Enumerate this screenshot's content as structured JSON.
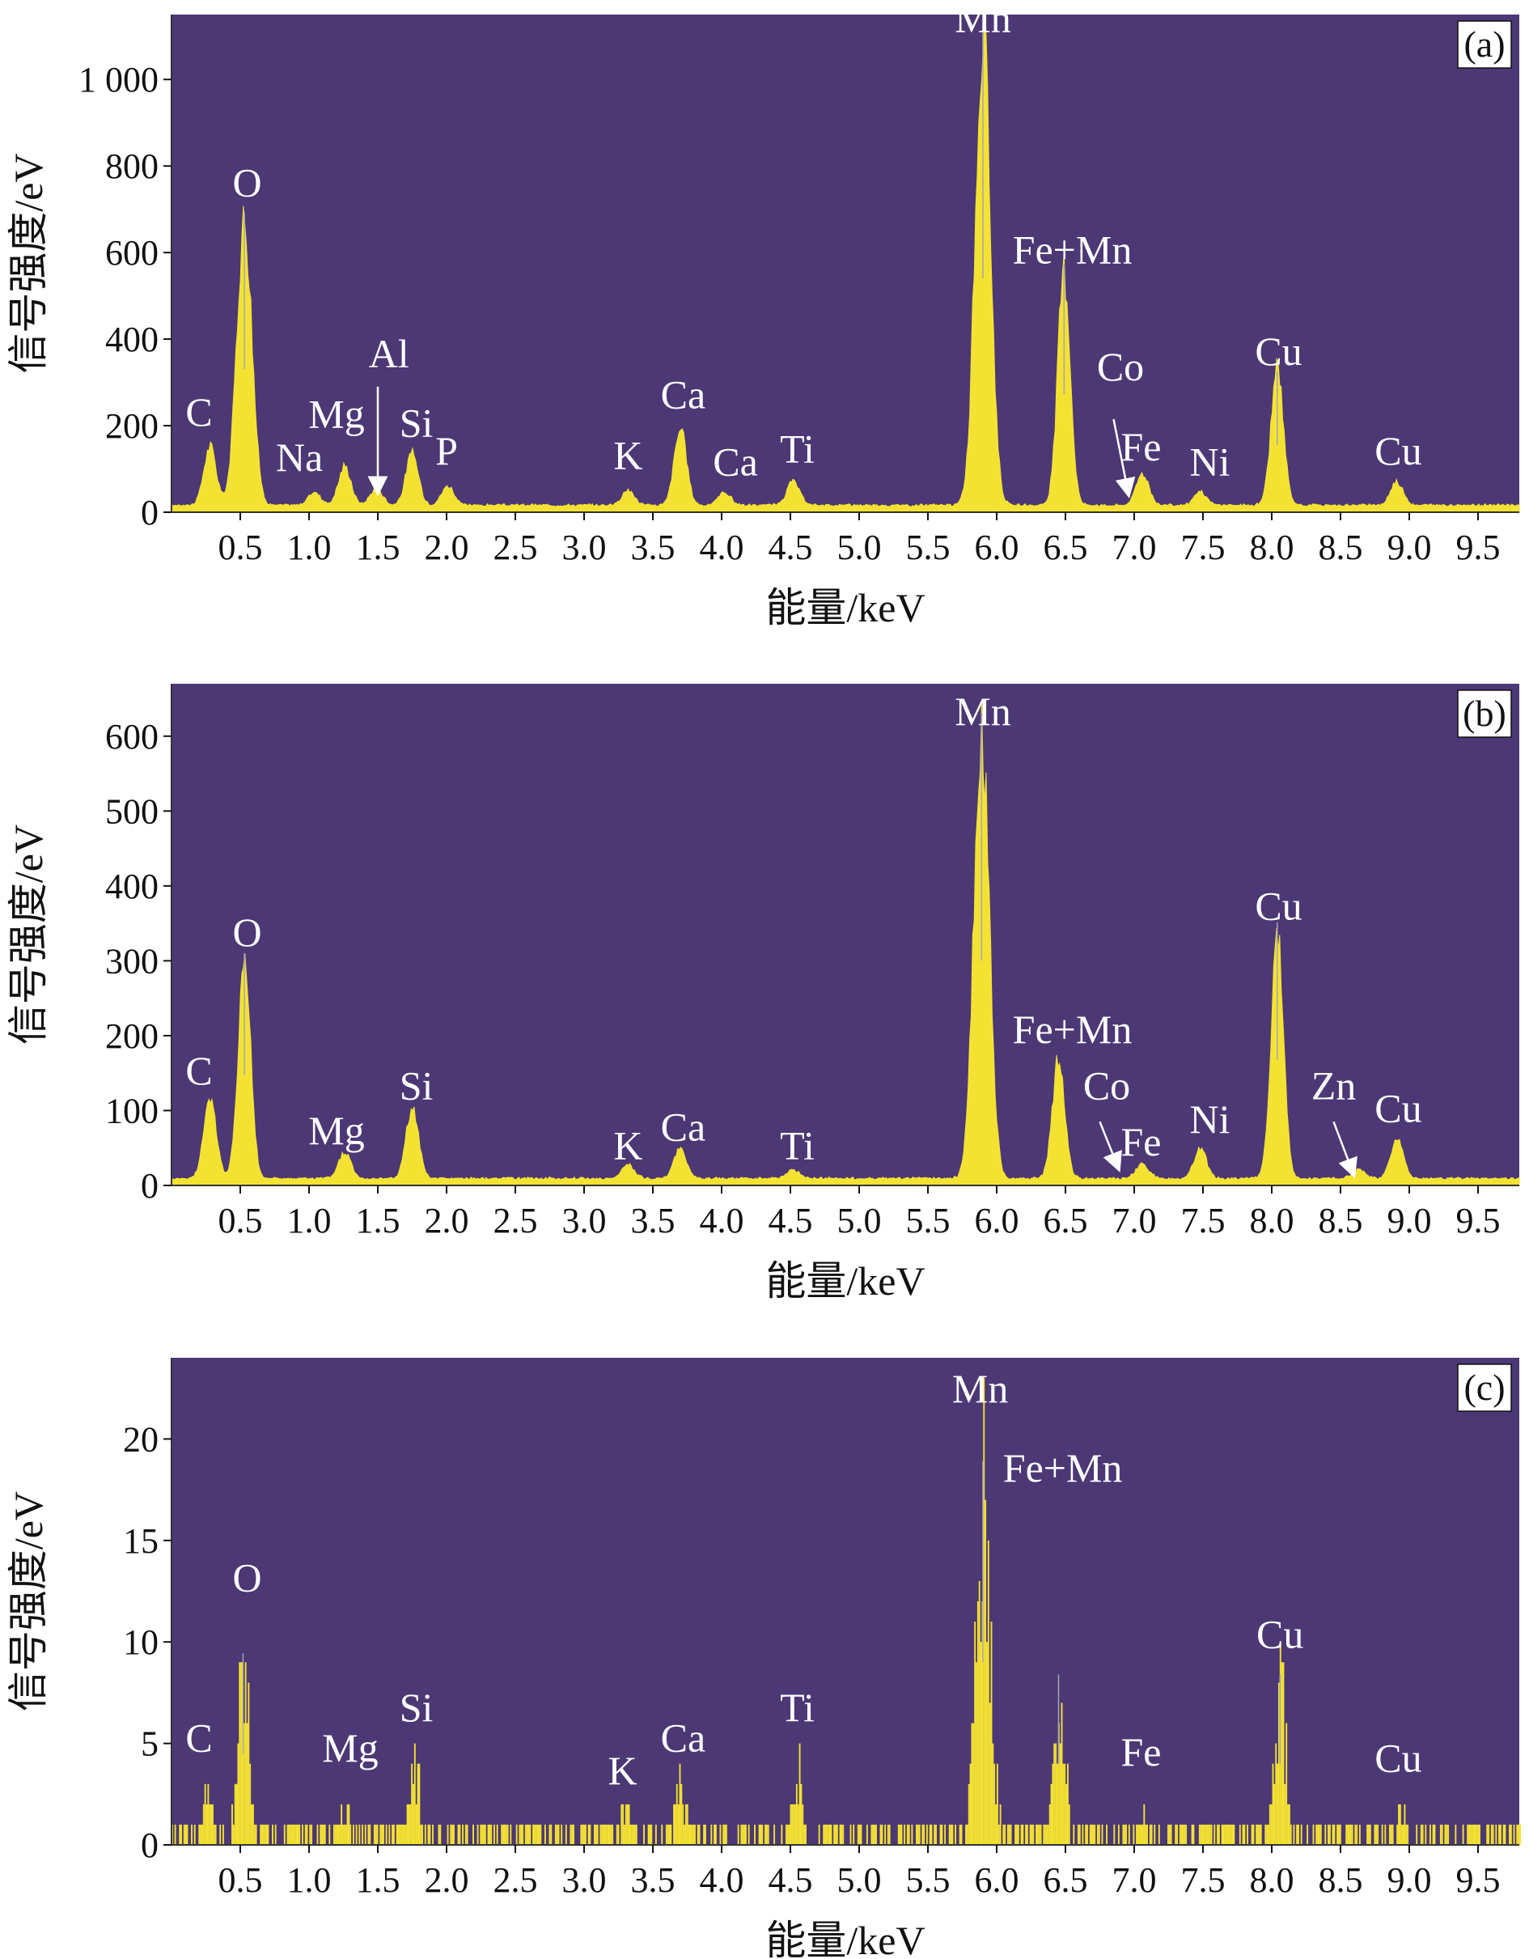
{
  "colors": {
    "plot_bg": "#4b3875",
    "spectrum_fill": "#f4e233",
    "peak_highlight": "#a8a6b8",
    "label_text": "#ffffff",
    "arrow": "#ffffff"
  },
  "chart_data": [
    {
      "panel": "(a)",
      "type": "area",
      "xlabel": "能量/keV",
      "ylabel": "信号强度/eV",
      "xlim": [
        0.0,
        9.8
      ],
      "ylim": [
        0,
        1150
      ],
      "x_ticks": [
        "0.5",
        "1.0",
        "1.5",
        "2.0",
        "2.5",
        "3.0",
        "3.5",
        "4.0",
        "4.5",
        "5.0",
        "5.5",
        "6.0",
        "6.5",
        "7.0",
        "7.5",
        "8.0",
        "8.5",
        "9.0",
        "9.5"
      ],
      "y_ticks": [
        "0",
        "200",
        "400",
        "600",
        "800",
        "1 000"
      ],
      "y_tick_values": [
        0,
        200,
        400,
        600,
        800,
        1000
      ],
      "baseline": 14,
      "spiky": false,
      "peaks": [
        {
          "element": "C",
          "x": 0.28,
          "y": 135
        },
        {
          "element": "O",
          "x": 0.53,
          "y": 660
        },
        {
          "element": "Na",
          "x": 1.04,
          "y": 30
        },
        {
          "element": "Mg",
          "x": 1.26,
          "y": 90
        },
        {
          "element": "Al",
          "x": 1.49,
          "y": 40
        },
        {
          "element": "Si",
          "x": 1.75,
          "y": 120
        },
        {
          "element": "P",
          "x": 2.01,
          "y": 45
        },
        {
          "element": "K",
          "x": 3.32,
          "y": 35
        },
        {
          "element": "Ca",
          "x": 3.7,
          "y": 175
        },
        {
          "element": "Ca",
          "x": 4.02,
          "y": 30
        },
        {
          "element": "Ti",
          "x": 4.52,
          "y": 55
        },
        {
          "element": "Mn",
          "x": 5.9,
          "y": 1080
        },
        {
          "element": "Fe+Mn",
          "x": 6.49,
          "y": 545
        },
        {
          "element": "Fe",
          "x": 7.06,
          "y": 75
        },
        {
          "element": "Ni",
          "x": 7.48,
          "y": 30
        },
        {
          "element": "Cu",
          "x": 8.04,
          "y": 310
        },
        {
          "element": "Cu",
          "x": 8.91,
          "y": 55
        }
      ],
      "labels": [
        {
          "text": "C",
          "x": 0.2,
          "y": 200
        },
        {
          "text": "O",
          "x": 0.55,
          "y": 730
        },
        {
          "text": "Na",
          "x": 0.93,
          "y": 95
        },
        {
          "text": "Mg",
          "x": 1.2,
          "y": 195
        },
        {
          "text": "Al",
          "x": 1.58,
          "y": 335
        },
        {
          "text": "Si",
          "x": 1.78,
          "y": 175
        },
        {
          "text": "P",
          "x": 2.0,
          "y": 110
        },
        {
          "text": "K",
          "x": 3.32,
          "y": 100
        },
        {
          "text": "Ca",
          "x": 3.72,
          "y": 240
        },
        {
          "text": "Ca",
          "x": 4.1,
          "y": 85
        },
        {
          "text": "Ti",
          "x": 4.55,
          "y": 115
        },
        {
          "text": "Mn",
          "x": 5.9,
          "y": 1110
        },
        {
          "text": "Fe+Mn",
          "x": 6.55,
          "y": 575
        },
        {
          "text": "Co",
          "x": 6.9,
          "y": 305
        },
        {
          "text": "Fe",
          "x": 7.05,
          "y": 120
        },
        {
          "text": "Ni",
          "x": 7.55,
          "y": 85
        },
        {
          "text": "Cu",
          "x": 8.05,
          "y": 340
        },
        {
          "text": "Cu",
          "x": 8.92,
          "y": 110
        }
      ],
      "arrows": [
        {
          "from": [
            1.5,
            290
          ],
          "to": [
            1.5,
            60
          ]
        },
        {
          "from": [
            6.85,
            215
          ],
          "to": [
            6.95,
            55
          ]
        }
      ]
    },
    {
      "panel": "(b)",
      "type": "area",
      "xlabel": "能量/keV",
      "ylabel": "信号强度/eV",
      "xlim": [
        0.0,
        9.8
      ],
      "ylim": [
        0,
        670
      ],
      "x_ticks": [
        "0.5",
        "1.0",
        "1.5",
        "2.0",
        "2.5",
        "3.0",
        "3.5",
        "4.0",
        "4.5",
        "5.0",
        "5.5",
        "6.0",
        "6.5",
        "7.0",
        "7.5",
        "8.0",
        "8.5",
        "9.0",
        "9.5"
      ],
      "y_ticks": [
        "0",
        "100",
        "200",
        "300",
        "400",
        "500",
        "600"
      ],
      "y_tick_values": [
        0,
        100,
        200,
        300,
        400,
        500,
        600
      ],
      "baseline": 8,
      "spiky": false,
      "peaks": [
        {
          "element": "C",
          "x": 0.28,
          "y": 110
        },
        {
          "element": "O",
          "x": 0.53,
          "y": 295
        },
        {
          "element": "Mg",
          "x": 1.26,
          "y": 35
        },
        {
          "element": "Si",
          "x": 1.75,
          "y": 95
        },
        {
          "element": "K",
          "x": 3.32,
          "y": 18
        },
        {
          "element": "Ca",
          "x": 3.7,
          "y": 40
        },
        {
          "element": "Ti",
          "x": 4.52,
          "y": 12
        },
        {
          "element": "Mn",
          "x": 5.89,
          "y": 600
        },
        {
          "element": "Fe+Mn",
          "x": 6.45,
          "y": 160
        },
        {
          "element": "Fe",
          "x": 7.06,
          "y": 20
        },
        {
          "element": "Ni",
          "x": 7.48,
          "y": 40
        },
        {
          "element": "Cu",
          "x": 8.04,
          "y": 335
        },
        {
          "element": "Zn",
          "x": 8.63,
          "y": 12
        },
        {
          "element": "Cu",
          "x": 8.91,
          "y": 55
        }
      ],
      "labels": [
        {
          "text": "C",
          "x": 0.2,
          "y": 135
        },
        {
          "text": "O",
          "x": 0.55,
          "y": 320
        },
        {
          "text": "Mg",
          "x": 1.2,
          "y": 55
        },
        {
          "text": "Si",
          "x": 1.78,
          "y": 115
        },
        {
          "text": "K",
          "x": 3.32,
          "y": 35
        },
        {
          "text": "Ca",
          "x": 3.72,
          "y": 60
        },
        {
          "text": "Ti",
          "x": 4.55,
          "y": 35
        },
        {
          "text": "Mn",
          "x": 5.9,
          "y": 615
        },
        {
          "text": "Fe+Mn",
          "x": 6.55,
          "y": 190
        },
        {
          "text": "Co",
          "x": 6.8,
          "y": 115
        },
        {
          "text": "Fe",
          "x": 7.05,
          "y": 40
        },
        {
          "text": "Ni",
          "x": 7.55,
          "y": 70
        },
        {
          "text": "Cu",
          "x": 8.05,
          "y": 355
        },
        {
          "text": "Zn",
          "x": 8.45,
          "y": 115
        },
        {
          "text": "Cu",
          "x": 8.92,
          "y": 85
        }
      ],
      "arrows": [
        {
          "from": [
            6.75,
            85
          ],
          "to": [
            6.87,
            30
          ]
        },
        {
          "from": [
            8.45,
            85
          ],
          "to": [
            8.58,
            22
          ]
        }
      ]
    },
    {
      "panel": "(c)",
      "type": "area",
      "xlabel": "能量/keV",
      "ylabel": "信号强度/eV",
      "xlim": [
        0.0,
        9.8
      ],
      "ylim": [
        0,
        24
      ],
      "x_ticks": [
        "0.5",
        "1.0",
        "1.5",
        "2.0",
        "2.5",
        "3.0",
        "3.5",
        "4.0",
        "4.5",
        "5.0",
        "5.5",
        "6.0",
        "6.5",
        "7.0",
        "7.5",
        "8.0",
        "8.5",
        "9.0",
        "9.5"
      ],
      "y_ticks": [
        "0",
        "5",
        "10",
        "15",
        "20"
      ],
      "y_tick_values": [
        0,
        5,
        10,
        15,
        20
      ],
      "baseline": 0,
      "spiky": true,
      "peaks": [
        {
          "element": "C",
          "x": 0.25,
          "y": 3
        },
        {
          "element": "O",
          "x": 0.52,
          "y": 9
        },
        {
          "element": "Mg",
          "x": 1.26,
          "y": 2
        },
        {
          "element": "Si",
          "x": 1.76,
          "y": 4
        },
        {
          "element": "K",
          "x": 3.3,
          "y": 2
        },
        {
          "element": "Ca",
          "x": 3.7,
          "y": 3
        },
        {
          "element": "Ti",
          "x": 4.55,
          "y": 4
        },
        {
          "element": "Mn",
          "x": 5.9,
          "y": 18
        },
        {
          "element": "Fe+Mn",
          "x": 6.45,
          "y": 8
        },
        {
          "element": "Fe",
          "x": 7.05,
          "y": 2
        },
        {
          "element": "Cu",
          "x": 8.06,
          "y": 8
        },
        {
          "element": "Cu",
          "x": 8.94,
          "y": 2
        }
      ],
      "labels": [
        {
          "text": "C",
          "x": 0.2,
          "y": 4.6
        },
        {
          "text": "O",
          "x": 0.55,
          "y": 12.5
        },
        {
          "text": "Mg",
          "x": 1.3,
          "y": 4.1
        },
        {
          "text": "Si",
          "x": 1.78,
          "y": 6.1
        },
        {
          "text": "K",
          "x": 3.28,
          "y": 3.0
        },
        {
          "text": "Ca",
          "x": 3.72,
          "y": 4.6
        },
        {
          "text": "Ti",
          "x": 4.55,
          "y": 6.1
        },
        {
          "text": "Mn",
          "x": 5.88,
          "y": 21.8
        },
        {
          "text": "Fe+Mn",
          "x": 6.48,
          "y": 17.9
        },
        {
          "text": "Fe",
          "x": 7.05,
          "y": 3.9
        },
        {
          "text": "Cu",
          "x": 8.06,
          "y": 9.7
        },
        {
          "text": "Cu",
          "x": 8.92,
          "y": 3.6
        }
      ],
      "arrows": []
    }
  ]
}
